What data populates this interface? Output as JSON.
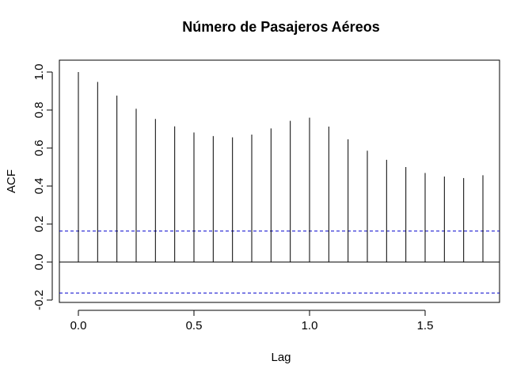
{
  "chart_data": {
    "type": "bar",
    "subtype": "acf",
    "title": "Número de Pasajeros Aéreos",
    "xlabel": "Lag",
    "ylabel": "ACF",
    "xlim": [
      -0.0833,
      1.83
    ],
    "ylim": [
      -0.2,
      1.0
    ],
    "x_ticks": [
      {
        "value": 0.0,
        "label": "0.0"
      },
      {
        "value": 0.5,
        "label": "0.5"
      },
      {
        "value": 1.0,
        "label": "1.0"
      },
      {
        "value": 1.5,
        "label": "1.5"
      }
    ],
    "y_ticks": [
      {
        "value": -0.2,
        "label": "-0.2"
      },
      {
        "value": 0.0,
        "label": "0.0"
      },
      {
        "value": 0.2,
        "label": "0.2"
      },
      {
        "value": 0.4,
        "label": "0.4"
      },
      {
        "value": 0.6,
        "label": "0.6"
      },
      {
        "value": 0.8,
        "label": "0.8"
      },
      {
        "value": 1.0,
        "label": "1.0"
      }
    ],
    "lags": [
      0.0,
      0.0833,
      0.1667,
      0.25,
      0.3333,
      0.4167,
      0.5,
      0.5833,
      0.6667,
      0.75,
      0.8333,
      0.9167,
      1.0,
      1.0833,
      1.1667,
      1.25,
      1.3333,
      1.4167,
      1.5,
      1.5833,
      1.6667,
      1.75
    ],
    "values": [
      1.0,
      0.948,
      0.876,
      0.807,
      0.753,
      0.714,
      0.682,
      0.663,
      0.656,
      0.671,
      0.703,
      0.743,
      0.76,
      0.713,
      0.646,
      0.586,
      0.538,
      0.5,
      0.469,
      0.45,
      0.442,
      0.457
    ],
    "confidence_bound": 0.163,
    "colors": {
      "bars": "#000000",
      "confidence_lines": "#0000cc",
      "zero_line": "#000000"
    },
    "grid": false
  }
}
